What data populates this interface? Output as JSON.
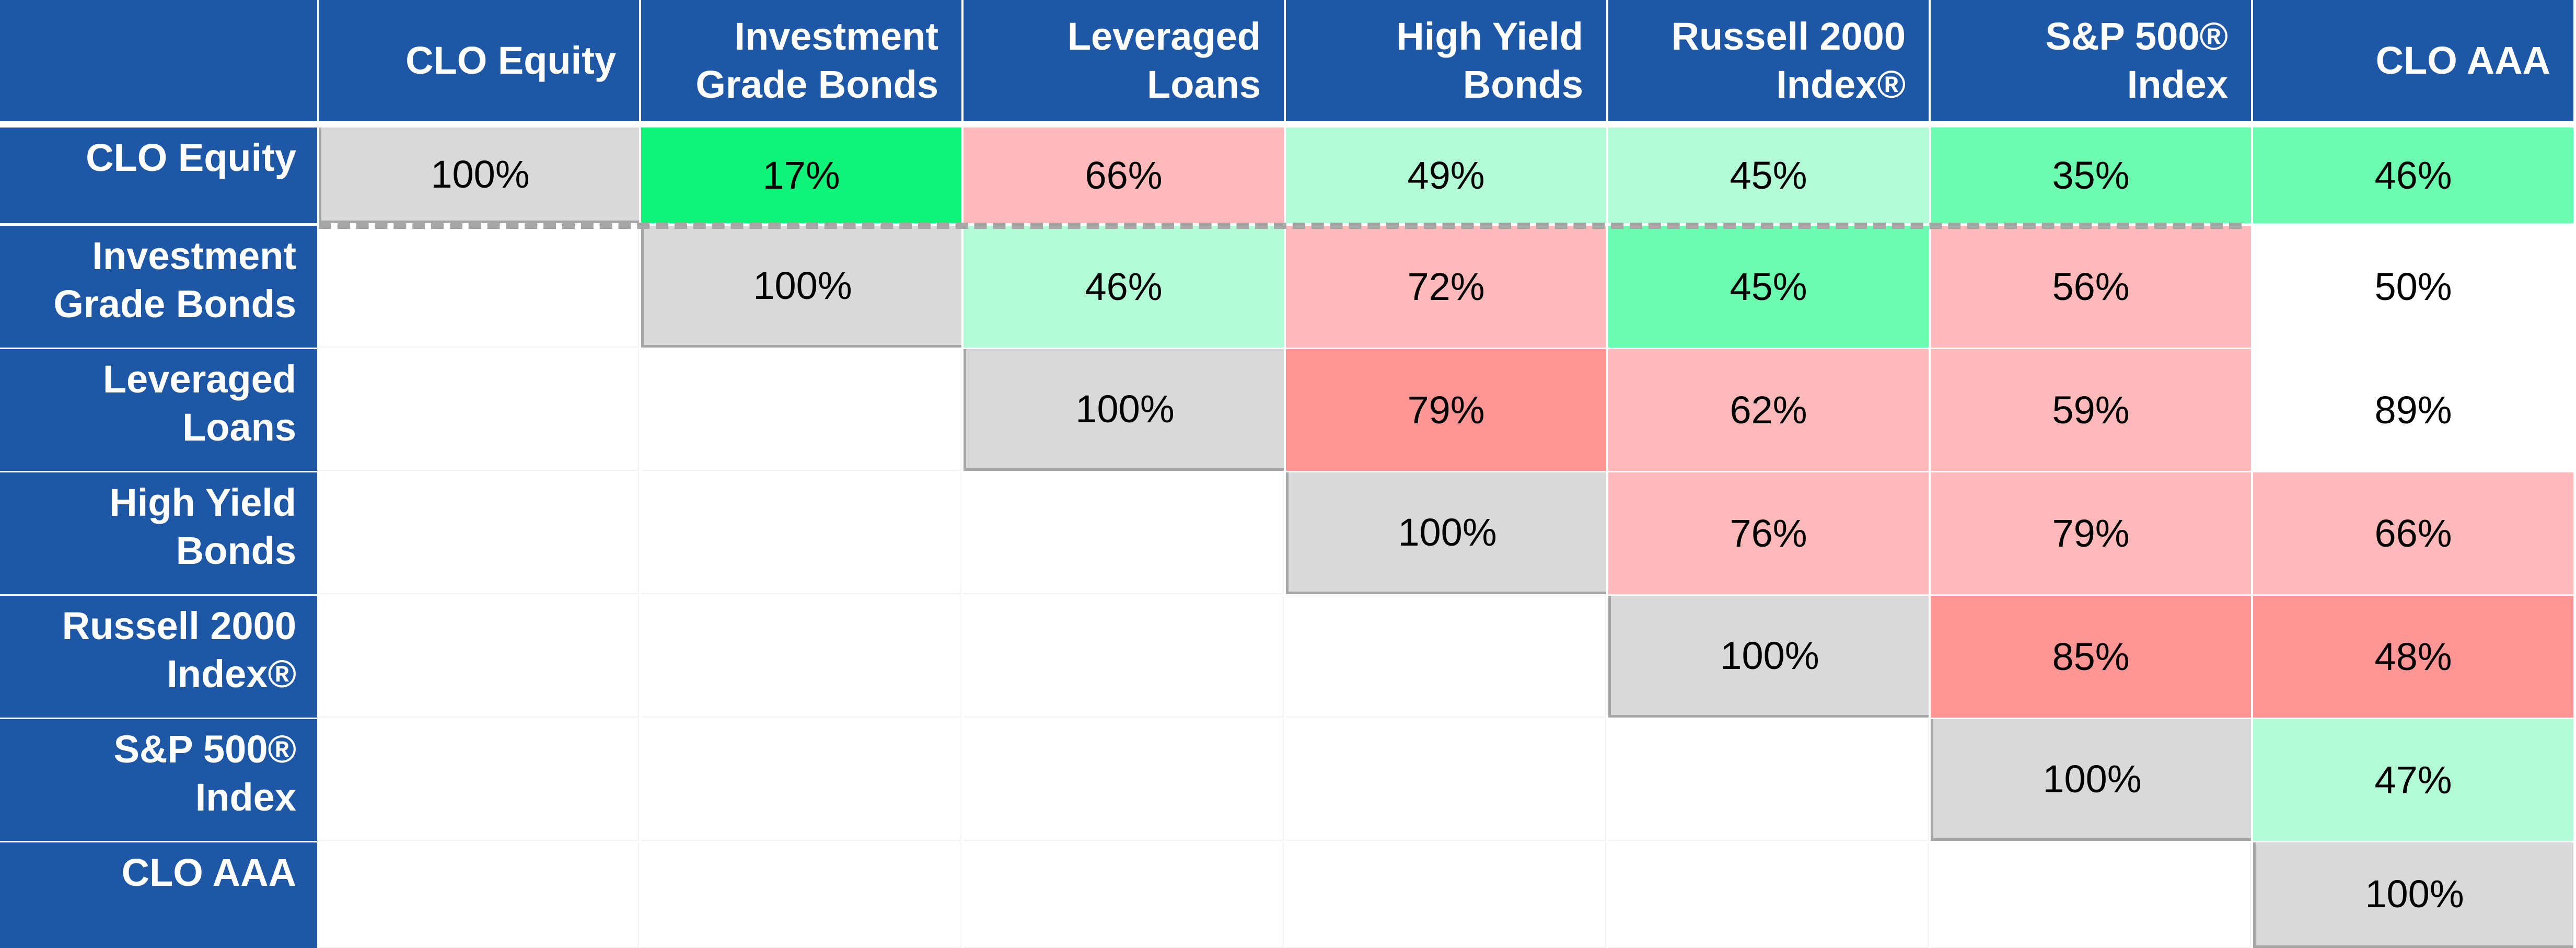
{
  "table": {
    "columns": [
      "CLO Equity",
      "Investment Grade Bonds",
      "Leveraged Loans",
      "High Yield Bonds",
      "Russell 2000 Index®",
      "S&P 500® Index",
      "CLO AAA"
    ],
    "rows": [
      {
        "label": "CLO Equity",
        "cells": [
          "100%",
          "17%",
          "66%",
          "49%",
          "45%",
          "35%",
          "46%"
        ]
      },
      {
        "label": "Investment Grade Bonds",
        "cells": [
          null,
          "100%",
          "46%",
          "72%",
          "45%",
          "56%",
          "50%"
        ]
      },
      {
        "label": "Leveraged Loans",
        "cells": [
          null,
          null,
          "100%",
          "79%",
          "62%",
          "59%",
          "89%"
        ]
      },
      {
        "label": "High Yield Bonds",
        "cells": [
          null,
          null,
          null,
          "100%",
          "76%",
          "79%",
          "66%"
        ]
      },
      {
        "label": "Russell 2000 Index®",
        "cells": [
          null,
          null,
          null,
          null,
          "100%",
          "85%",
          "48%"
        ]
      },
      {
        "label": "S&P 500® Index",
        "cells": [
          null,
          null,
          null,
          null,
          null,
          "100%",
          "47%"
        ]
      },
      {
        "label": "CLO AAA",
        "cells": [
          null,
          null,
          null,
          null,
          null,
          null,
          "100%"
        ]
      }
    ],
    "cell_colors": [
      [
        "#d9d9d9",
        "#0ff57a",
        "#ffb9b9",
        "#b3fbd6",
        "#b3fbd6",
        "#6bfcb0",
        "#6bfcb0"
      ],
      [
        null,
        "#d9d9d9",
        "#b3fbd6",
        "#ffb9b9",
        "#6bfcb0",
        "#ffb9b9",
        "#ffffff"
      ],
      [
        null,
        null,
        "#d9d9d9",
        "#ff9696",
        "#ffb9b9",
        "#ffb9b9",
        "#ffffff"
      ],
      [
        null,
        null,
        null,
        "#d9d9d9",
        "#ffb9b9",
        "#ffb9b9",
        "#ffb9b9"
      ],
      [
        null,
        null,
        null,
        null,
        "#d9d9d9",
        "#ff9696",
        "#ff9696"
      ],
      [
        null,
        null,
        null,
        null,
        null,
        "#d9d9d9",
        "#b3fbd6"
      ],
      [
        null,
        null,
        null,
        null,
        null,
        null,
        "#d9d9d9"
      ]
    ]
  }
}
